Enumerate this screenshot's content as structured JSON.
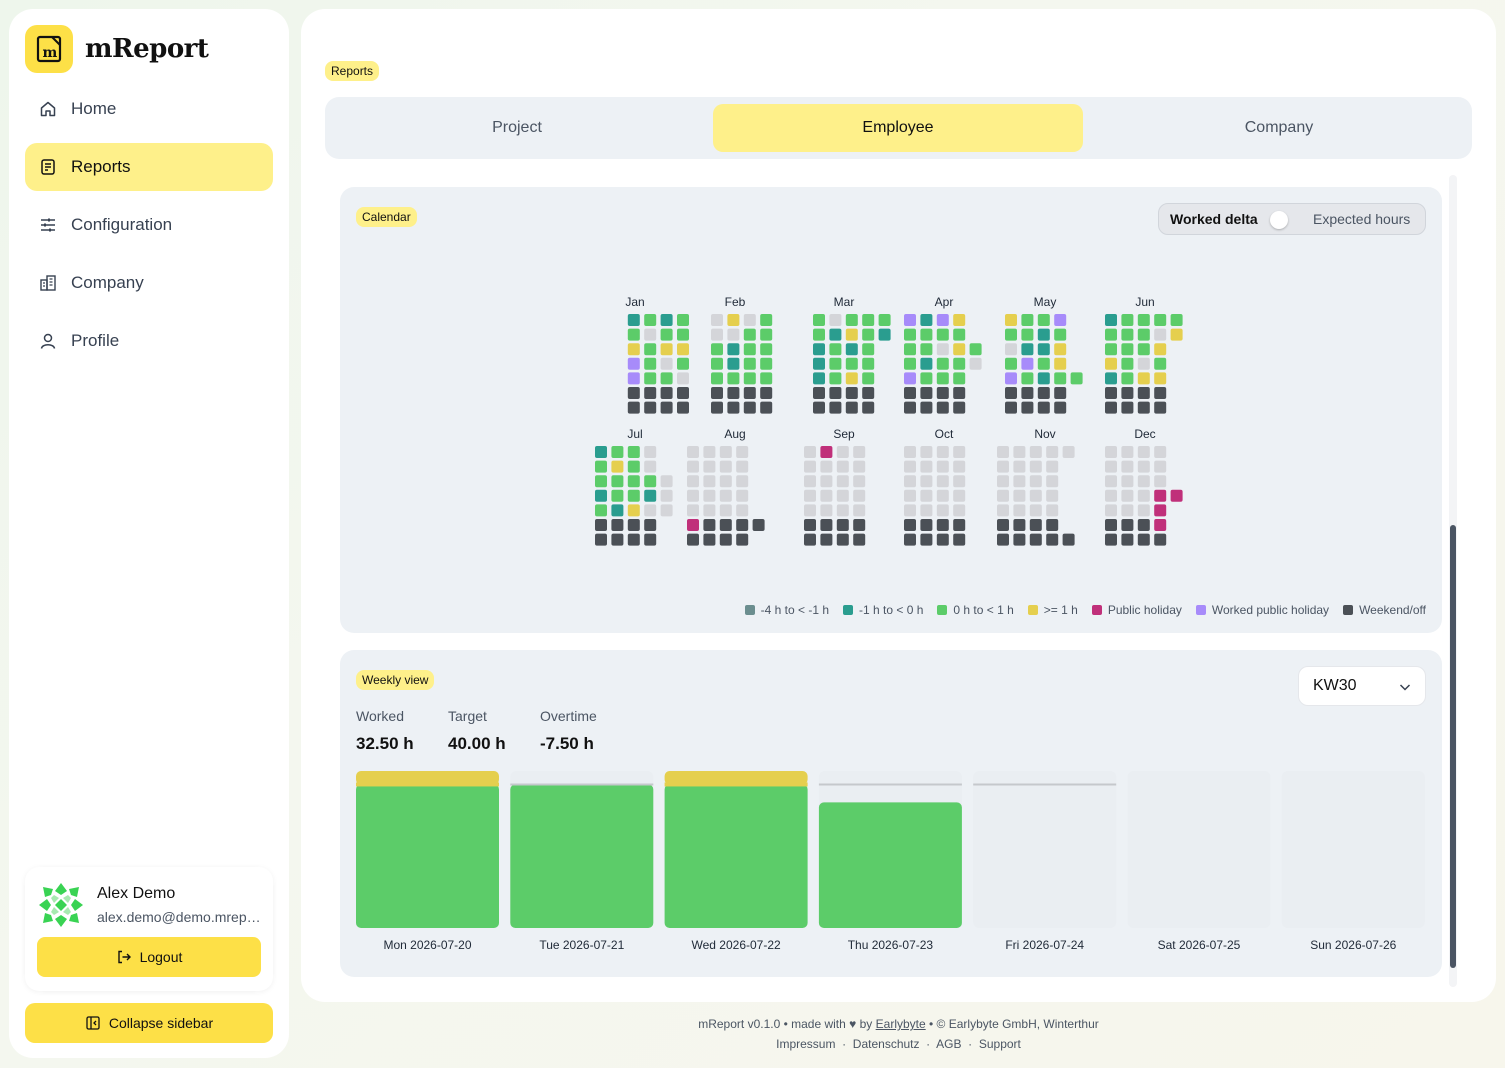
{
  "app": {
    "name": "mReport",
    "logo_letter": "m"
  },
  "sidebar": {
    "items": [
      {
        "label": "Home",
        "icon": "home-icon",
        "active": false
      },
      {
        "label": "Reports",
        "icon": "report-icon",
        "active": true
      },
      {
        "label": "Configuration",
        "icon": "sliders-icon",
        "active": false
      },
      {
        "label": "Company",
        "icon": "building-icon",
        "active": false
      },
      {
        "label": "Profile",
        "icon": "user-icon",
        "active": false
      }
    ],
    "user": {
      "name": "Alex Demo",
      "email": "alex.demo@demo.mreport.ch"
    },
    "logout_label": "Logout",
    "collapse_label": "Collapse sidebar"
  },
  "page": {
    "badge": "Reports"
  },
  "tabs": [
    {
      "label": "Project",
      "active": false
    },
    {
      "label": "Employee",
      "active": true
    },
    {
      "label": "Company",
      "active": false
    }
  ],
  "calendar": {
    "badge": "Calendar",
    "toggle": {
      "left": "Worked delta",
      "right": "Expected hours"
    },
    "months": [
      "Jan",
      "Feb",
      "Mar",
      "Apr",
      "May",
      "Jun",
      "Jul",
      "Aug",
      "Sep",
      "Oct",
      "Nov",
      "Dec"
    ],
    "legend": [
      {
        "label": "-4 h to < -1 h",
        "color": "#6b8e8f"
      },
      {
        "label": "-1 h to < 0 h",
        "color": "#2a9d8f"
      },
      {
        "label": "0 h to < 1 h",
        "color": "#5ccc69"
      },
      {
        "label": ">= 1 h",
        "color": "#e5cf4e"
      },
      {
        "label": "Public holiday",
        "color": "#c0307a"
      },
      {
        "label": "Worked public holiday",
        "color": "#a78bfa"
      },
      {
        "label": "Weekend/off",
        "color": "#4b5056"
      }
    ],
    "empty_color": "#d4d5d9"
  },
  "weekly": {
    "badge": "Weekly view",
    "stats": [
      {
        "label": "Worked",
        "value": "32.50 h"
      },
      {
        "label": "Target",
        "value": "40.00 h"
      },
      {
        "label": "Overtime",
        "value": "-7.50 h"
      }
    ],
    "week_selected": "KW30",
    "colors": {
      "worked": "#5ccc69",
      "overtime": "#e5cf4e",
      "target_line": "#c5c8cc",
      "bg": "#eaeef2"
    }
  },
  "chart_data": {
    "type": "bar",
    "title": "",
    "categories": [
      "Mon 2026-07-20",
      "Tue 2026-07-21",
      "Wed 2026-07-22",
      "Thu 2026-07-23",
      "Fri 2026-07-24",
      "Sat 2026-07-25",
      "Sun 2026-07-26"
    ],
    "series": [
      {
        "name": "",
        "values": [
          8.75,
          8.0,
          8.75,
          7.0,
          0,
          0,
          0
        ]
      }
    ],
    "target": [
      8,
      8,
      8,
      8,
      8,
      0,
      0
    ],
    "ylim": [
      0,
      8.75
    ]
  },
  "footer": {
    "line1_prefix": "mReport v0.1.0 • made with ♥ by",
    "link": "Earlybyte",
    "line1_suffix": "• © Earlybyte GmbH, Winterthur",
    "links": [
      "Impressum",
      "Datenschutz",
      "AGB",
      "Support"
    ]
  }
}
